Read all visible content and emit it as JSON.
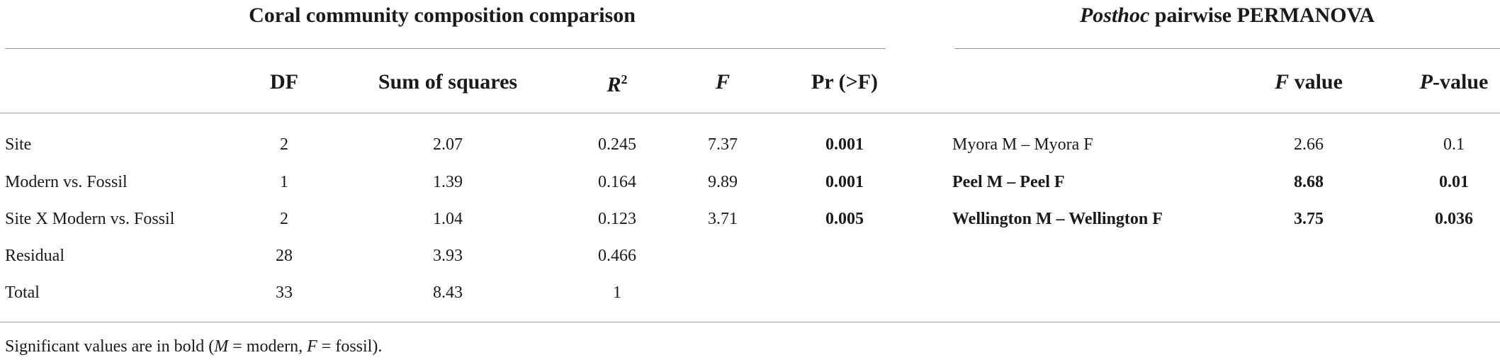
{
  "left_table": {
    "title": "Coral community composition comparison",
    "headers": [
      [
        {
          "text": "DF"
        }
      ],
      [
        {
          "text": "Sum of squares"
        }
      ],
      [
        {
          "text": "R",
          "italic": true,
          "sup": "2"
        }
      ],
      [
        {
          "text": "F",
          "italic": true
        }
      ],
      [
        {
          "text": "Pr (>F)"
        }
      ]
    ],
    "bold_column": 5,
    "rows": [
      [
        "Site",
        2,
        2.07,
        0.245,
        7.37,
        0.001
      ],
      [
        "Modern vs. Fossil",
        1,
        1.39,
        0.164,
        9.89,
        0.001
      ],
      [
        "Site X Modern vs. Fossil",
        2,
        1.04,
        0.123,
        3.71,
        0.005
      ],
      [
        "Residual",
        28,
        3.93,
        0.466
      ],
      [
        "Total",
        33,
        8.43,
        1
      ]
    ]
  },
  "right_table": {
    "title": [
      {
        "text": "Posthoc",
        "italic": true
      },
      {
        "text": " pairwise PERMANOVA"
      }
    ],
    "headers": [
      [
        {
          "text": "F",
          "italic": true
        },
        {
          "text": " value"
        }
      ],
      [
        {
          "text": "P",
          "italic": true
        },
        {
          "text": "-value"
        }
      ]
    ],
    "rows": [
      {
        "cells": [
          "Myora M – Myora F",
          2.66,
          0.1
        ],
        "bold": false
      },
      {
        "cells": [
          "Peel M – Peel F",
          8.68,
          0.01
        ],
        "bold": true
      },
      {
        "cells": [
          "Wellington M – Wellington F",
          3.75,
          0.036
        ],
        "bold": true
      }
    ]
  },
  "footnote": [
    {
      "text": "Significant values are in bold ("
    },
    {
      "text": "M",
      "italic": true
    },
    {
      "text": " = modern, "
    },
    {
      "text": "F",
      "italic": true
    },
    {
      "text": " = fossil)."
    }
  ]
}
